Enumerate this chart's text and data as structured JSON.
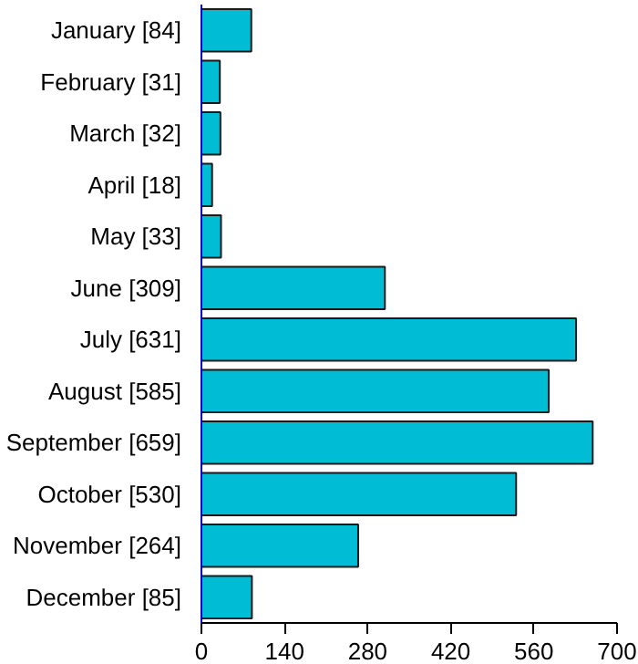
{
  "chart_data": {
    "type": "bar",
    "orientation": "horizontal",
    "categories": [
      "January [84]",
      "February [31]",
      "March [32]",
      "April [18]",
      "May [33]",
      "June [309]",
      "July [631]",
      "August [585]",
      "September [659]",
      "October [530]",
      "November [264]",
      "December [85]"
    ],
    "values": [
      84,
      31,
      32,
      18,
      33,
      309,
      631,
      585,
      659,
      530,
      264,
      85
    ],
    "color": "#00bcd4",
    "xlim": [
      0,
      700
    ],
    "xticks": [
      0,
      140,
      280,
      420,
      560,
      700
    ],
    "grid": false
  }
}
